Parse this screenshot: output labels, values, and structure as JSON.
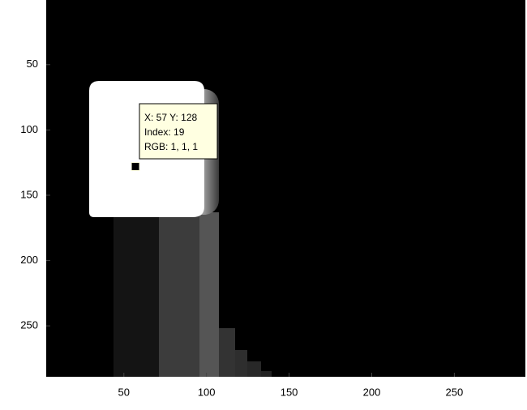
{
  "chart_data": {
    "type": "image",
    "xlim": [
      3,
      293
    ],
    "ylim": [
      0.5,
      289
    ],
    "y_reversed": true,
    "xticks": [
      50,
      100,
      150,
      200,
      250
    ],
    "yticks": [
      50,
      100,
      150,
      200,
      250
    ],
    "datatip": {
      "x": 57,
      "y": 128,
      "lines": [
        "X: 57 Y: 128",
        "Index: 19",
        "RGB: 1, 1, 1"
      ]
    }
  }
}
